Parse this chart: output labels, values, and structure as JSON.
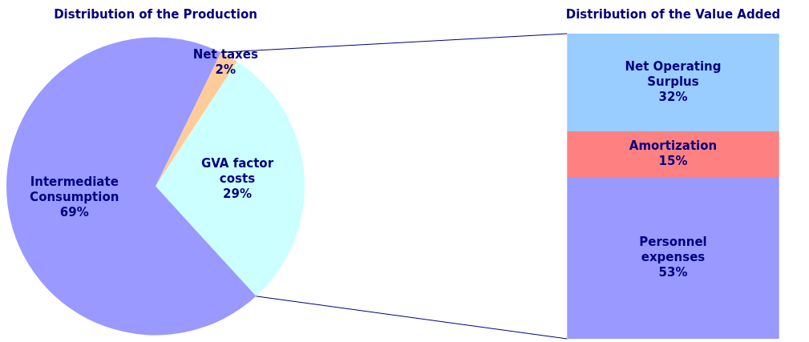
{
  "chart_data": [
    {
      "type": "pie",
      "title": "Distribution of the Production",
      "categories": [
        "Net taxes",
        "GVA factor costs",
        "Intermediate Consumption"
      ],
      "values": [
        2,
        29,
        69
      ],
      "colors": [
        "#ffcc99",
        "#ccffff",
        "#9999ff"
      ],
      "value_labels": [
        "2%",
        "29%",
        "69%"
      ],
      "legend": false
    },
    {
      "type": "bar",
      "title": "Distribution of the Value Added",
      "stacked": true,
      "categories": [
        null
      ],
      "ylim": [
        0,
        100
      ],
      "tick_labels": false,
      "legend": false,
      "series": [
        {
          "name": "Personnel expenses",
          "color": "#9999ff",
          "values": [
            53
          ],
          "value_labels": [
            "53%"
          ]
        },
        {
          "name": "Amortization",
          "color": "#ff8080",
          "values": [
            15
          ],
          "value_labels": [
            "15%"
          ]
        },
        {
          "name": "Net Operating Surplus",
          "color": "#99ccff",
          "values": [
            32
          ],
          "value_labels": [
            "32%"
          ]
        }
      ]
    }
  ]
}
